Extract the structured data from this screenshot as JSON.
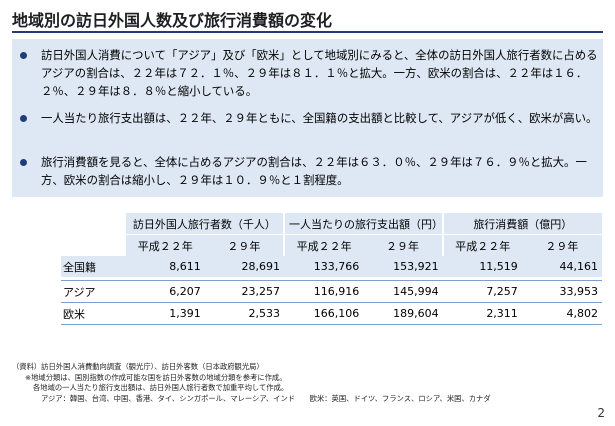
{
  "title": "地域別の訪日外国人数及び旅行消費額の変化",
  "bullets": [
    "訪日外国人消費について「アジア」及び「欧米」として地域別にみると、全体の訪日外国人旅行者数に占めるアジアの割合は、２２年は７２．１％、２９年は８１．１％と拡大。一方、欧米の割合は、２２年は１６．２％、２９年は８．８％と縮小している。",
    "一人当たり旅行支出額は、２２年、２９年ともに、全国籍の支出額と比較して、アジアが低く、欧米が高い。",
    "旅行消費額を見ると、全体に占めるアジアの割合は、２２年は６３．０％、２９年は７６．９％と拡大。一方、欧米の割合は縮小し、２９年は１０．９％と１割程度。"
  ],
  "table": {
    "groups": [
      "訪日外国人旅行者数（千人）",
      "一人当たりの旅行支出額（円）",
      "旅行消費額（億円）"
    ],
    "years": [
      "平成２２年",
      "２９年",
      "平成２２年",
      "２９年",
      "平成２２年",
      "２９年"
    ],
    "rows": [
      {
        "label": "全国籍",
        "values": [
          "8,611",
          "28,691",
          "133,766",
          "153,921",
          "11,519",
          "44,161"
        ]
      },
      {
        "label": "アジア",
        "values": [
          "6,207",
          "23,257",
          "116,916",
          "145,994",
          "7,257",
          "33,953"
        ]
      },
      {
        "label": "欧米",
        "values": [
          "1,391",
          "2,533",
          "166,106",
          "189,604",
          "2,311",
          "4,802"
        ]
      }
    ]
  },
  "notes": [
    "（資料）訪日外国人消費動向調査（観光庁）、訪日外客数（日本政府観光局）",
    "※地域分類は、国別指数の作成可能な国を訪日外客数の地域分類を参考に作成。",
    "各地域の一人当たり旅行支出額は、訪日外国人旅行者数で加重平均して作成。",
    "アジア：韓国、台湾、中国、香港、タイ、シンガポール、マレーシア、インド　　欧米：英国、ドイツ、フランス、ロシア、米国、カナダ"
  ],
  "page_number": "2",
  "colors": {
    "accent": "#1f3d7a",
    "panel": "#dde8f4",
    "rule": "#7f9ccc"
  }
}
